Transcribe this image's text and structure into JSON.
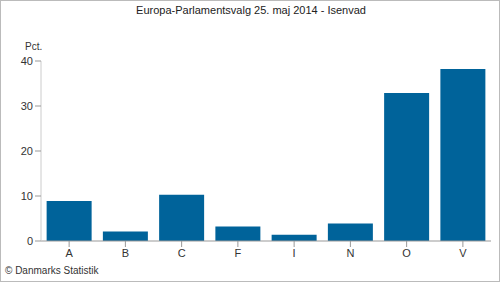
{
  "chart_data": {
    "type": "bar",
    "title": "Europa-Parlamentsvalg 25. maj 2014 - Isenvad",
    "y_label": "Pct.",
    "annotations": [
      "© Danmarks Statistik"
    ],
    "categories": [
      "A",
      "B",
      "C",
      "F",
      "I",
      "N",
      "O",
      "V"
    ],
    "values": [
      8.9,
      2.1,
      10.3,
      3.2,
      1.4,
      3.9,
      32.9,
      38.2
    ],
    "color": "#00639a",
    "ylim": [
      0,
      40
    ],
    "yticks": [
      0,
      10,
      20,
      30,
      40
    ],
    "grid": false
  }
}
